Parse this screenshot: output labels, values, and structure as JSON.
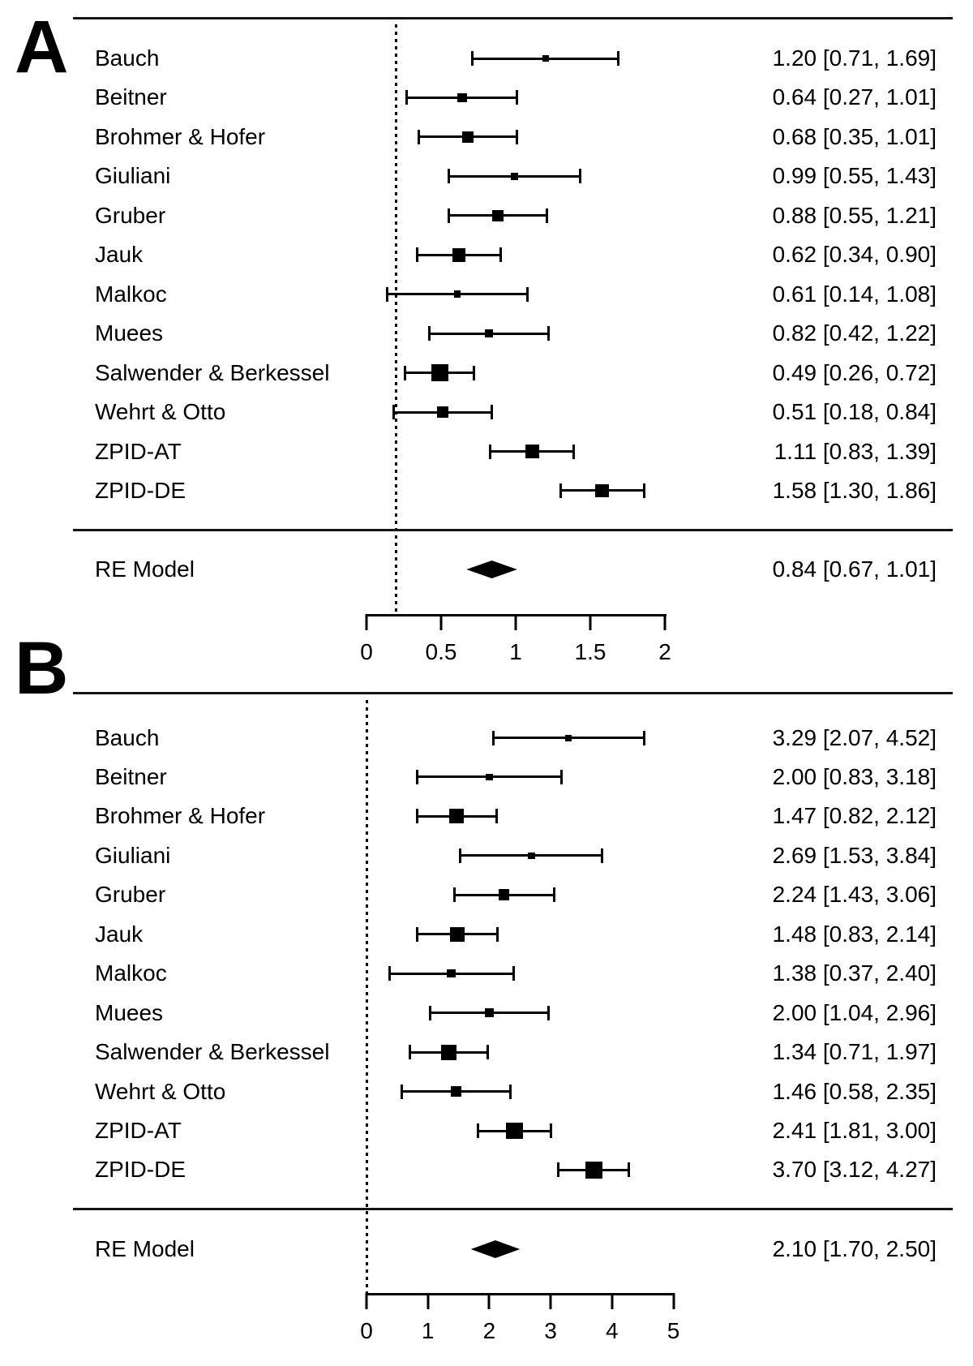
{
  "figure": {
    "type_note": "two-panel random-effects meta-analysis forest plot"
  },
  "chart_data": [
    {
      "type": "forest",
      "panel": "A",
      "xlim": [
        0,
        2
      ],
      "x_ticks": [
        0,
        0.5,
        1,
        1.5,
        2
      ],
      "x_tick_labels": [
        "0",
        "0.5",
        "1",
        "1.5",
        "2"
      ],
      "refline": 0.2,
      "studies": [
        {
          "label": "Bauch",
          "estimate": 1.2,
          "ci": [
            0.71,
            1.69
          ],
          "text": "1.20 [0.71, 1.69]"
        },
        {
          "label": "Beitner",
          "estimate": 0.64,
          "ci": [
            0.27,
            1.01
          ],
          "text": "0.64 [0.27, 1.01]"
        },
        {
          "label": "Brohmer & Hofer",
          "estimate": 0.68,
          "ci": [
            0.35,
            1.01
          ],
          "text": "0.68 [0.35, 1.01]"
        },
        {
          "label": "Giuliani",
          "estimate": 0.99,
          "ci": [
            0.55,
            1.43
          ],
          "text": "0.99 [0.55, 1.43]"
        },
        {
          "label": "Gruber",
          "estimate": 0.88,
          "ci": [
            0.55,
            1.21
          ],
          "text": "0.88 [0.55, 1.21]"
        },
        {
          "label": "Jauk",
          "estimate": 0.62,
          "ci": [
            0.34,
            0.9
          ],
          "text": "0.62 [0.34, 0.90]"
        },
        {
          "label": "Malkoc",
          "estimate": 0.61,
          "ci": [
            0.14,
            1.08
          ],
          "text": "0.61 [0.14, 1.08]"
        },
        {
          "label": "Muees",
          "estimate": 0.82,
          "ci": [
            0.42,
            1.22
          ],
          "text": "0.82 [0.42, 1.22]"
        },
        {
          "label": "Salwender & Berkessel",
          "estimate": 0.49,
          "ci": [
            0.26,
            0.72
          ],
          "text": "0.49 [0.26, 0.72]"
        },
        {
          "label": "Wehrt & Otto",
          "estimate": 0.51,
          "ci": [
            0.18,
            0.84
          ],
          "text": "0.51 [0.18, 0.84]"
        },
        {
          "label": "ZPID-AT",
          "estimate": 1.11,
          "ci": [
            0.83,
            1.39
          ],
          "text": "1.11 [0.83, 1.39]"
        },
        {
          "label": "ZPID-DE",
          "estimate": 1.58,
          "ci": [
            1.3,
            1.86
          ],
          "text": "1.58 [1.30, 1.86]"
        }
      ],
      "summary": {
        "label": "RE Model",
        "estimate": 0.84,
        "ci": [
          0.67,
          1.01
        ],
        "text": "0.84 [0.67, 1.01]"
      }
    },
    {
      "type": "forest",
      "panel": "B",
      "xlim": [
        0,
        5
      ],
      "x_ticks": [
        0,
        1,
        2,
        3,
        4,
        5
      ],
      "x_tick_labels": [
        "0",
        "1",
        "2",
        "3",
        "4",
        "5"
      ],
      "refline": 0,
      "studies": [
        {
          "label": "Bauch",
          "estimate": 3.29,
          "ci": [
            2.07,
            4.52
          ],
          "text": "3.29 [2.07, 4.52]"
        },
        {
          "label": "Beitner",
          "estimate": 2.0,
          "ci": [
            0.83,
            3.18
          ],
          "text": "2.00 [0.83, 3.18]"
        },
        {
          "label": "Brohmer & Hofer",
          "estimate": 1.47,
          "ci": [
            0.82,
            2.12
          ],
          "text": "1.47 [0.82, 2.12]"
        },
        {
          "label": "Giuliani",
          "estimate": 2.69,
          "ci": [
            1.53,
            3.84
          ],
          "text": "2.69 [1.53, 3.84]"
        },
        {
          "label": "Gruber",
          "estimate": 2.24,
          "ci": [
            1.43,
            3.06
          ],
          "text": "2.24 [1.43, 3.06]"
        },
        {
          "label": "Jauk",
          "estimate": 1.48,
          "ci": [
            0.83,
            2.14
          ],
          "text": "1.48 [0.83, 2.14]"
        },
        {
          "label": "Malkoc",
          "estimate": 1.38,
          "ci": [
            0.37,
            2.4
          ],
          "text": "1.38 [0.37, 2.40]"
        },
        {
          "label": "Muees",
          "estimate": 2.0,
          "ci": [
            1.04,
            2.96
          ],
          "text": "2.00 [1.04, 2.96]"
        },
        {
          "label": "Salwender & Berkessel",
          "estimate": 1.34,
          "ci": [
            0.71,
            1.97
          ],
          "text": "1.34 [0.71, 1.97]"
        },
        {
          "label": "Wehrt & Otto",
          "estimate": 1.46,
          "ci": [
            0.58,
            2.35
          ],
          "text": "1.46 [0.58, 2.35]"
        },
        {
          "label": "ZPID-AT",
          "estimate": 2.41,
          "ci": [
            1.81,
            3.0
          ],
          "text": "2.41 [1.81, 3.00]"
        },
        {
          "label": "ZPID-DE",
          "estimate": 3.7,
          "ci": [
            3.12,
            4.27
          ],
          "text": "3.70 [3.12, 4.27]"
        }
      ],
      "summary": {
        "label": "RE Model",
        "estimate": 2.1,
        "ci": [
          1.7,
          2.5
        ],
        "text": "2.10 [1.70, 2.50]"
      }
    }
  ]
}
